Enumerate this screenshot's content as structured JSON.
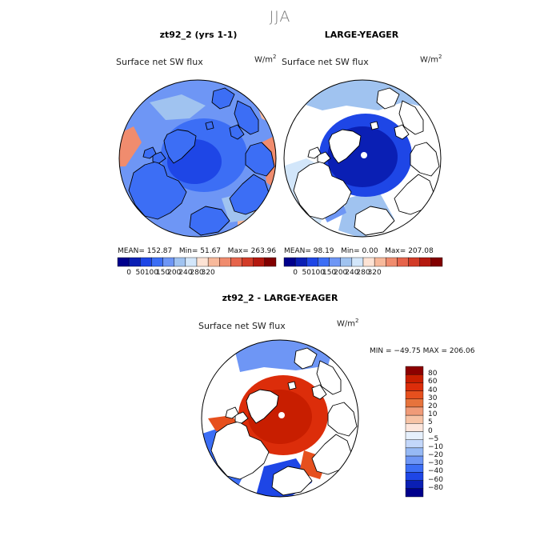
{
  "figure": {
    "title": "JJA"
  },
  "colors": {
    "abs_scale": [
      "#00008c",
      "#0a1fb4",
      "#1e46e6",
      "#3c6ef5",
      "#6e96f5",
      "#a0c3f0",
      "#d2e6fa",
      "#fde3d4",
      "#f7b99b",
      "#f08c6e",
      "#e6644b",
      "#d23c28",
      "#b4190f",
      "#820000"
    ],
    "diff_scale": [
      "#00008c",
      "#0a1fb4",
      "#1e46e6",
      "#3c6ef5",
      "#6e96f5",
      "#96b9f5",
      "#c3d7fa",
      "#e6f0fc",
      "#fde6dc",
      "#f7c3a5",
      "#f09b78",
      "#e6733c",
      "#e6501e",
      "#dc2d0a",
      "#c81e00",
      "#8c0000"
    ],
    "land": "#ffffff",
    "coast": "#000000"
  },
  "chart_data": [
    {
      "type": "heatmap",
      "panel": "model",
      "title": "zt92_2 (yrs 1-1)",
      "variable": "Surface net SW flux",
      "units_base": "W/m",
      "units_exp": "2",
      "stats": {
        "mean_label": "MEAN=",
        "mean": "152.87",
        "min_label": "Min=",
        "min": "51.67",
        "max_label": "Max=",
        "max": "263.96"
      },
      "colorbar_ticks": [
        "0",
        "50",
        "100",
        "150",
        "200",
        "240",
        "280",
        "320"
      ]
    },
    {
      "type": "heatmap",
      "panel": "observations",
      "title": "LARGE-YEAGER",
      "variable": "Surface net SW flux",
      "units_base": "W/m",
      "units_exp": "2",
      "stats": {
        "mean_label": "MEAN=",
        "mean": "98.19",
        "min_label": "Min=",
        "min": "0.00",
        "max_label": "Max=",
        "max": "207.08"
      },
      "colorbar_ticks": [
        "0",
        "50",
        "100",
        "150",
        "200",
        "240",
        "280",
        "320"
      ]
    },
    {
      "type": "heatmap",
      "panel": "difference",
      "title": "zt92_2 - LARGE-YEAGER",
      "variable": "Surface net SW flux",
      "units_base": "W/m",
      "units_exp": "2",
      "stats_line": "MIN = −49.75  MAX = 206.06",
      "colorbar_ticks": [
        "80",
        "60",
        "40",
        "30",
        "20",
        "10",
        "5",
        "0",
        "−5",
        "−10",
        "−20",
        "−30",
        "−40",
        "−60",
        "−80"
      ]
    }
  ]
}
